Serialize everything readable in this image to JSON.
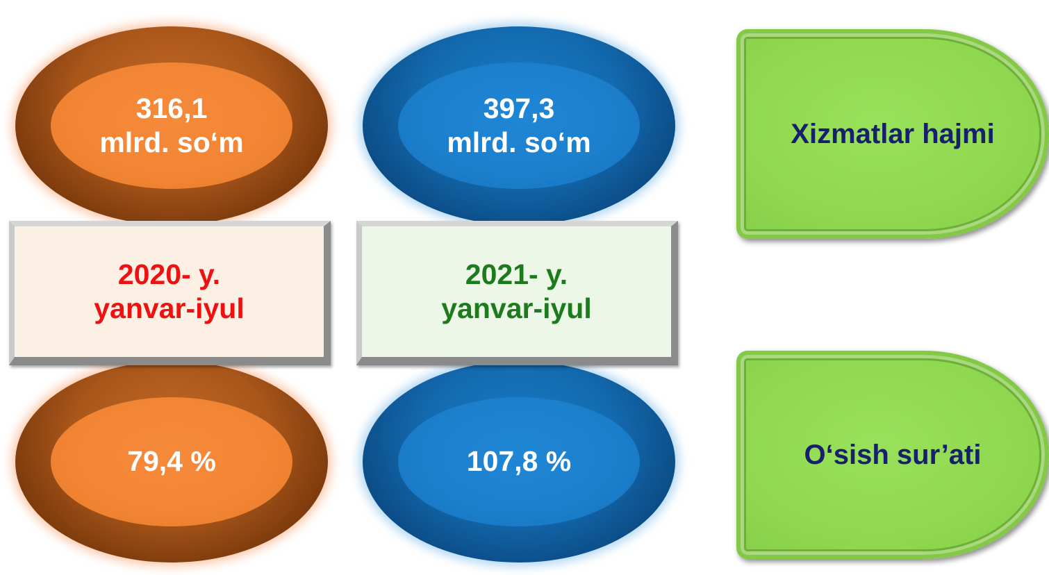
{
  "top_row": {
    "left": {
      "value": "316,1",
      "unit": "mlrd. so‘m"
    },
    "right": {
      "value": "397,3",
      "unit": "mlrd. so‘m"
    }
  },
  "periods": {
    "left": {
      "year": "2020- y.",
      "range": "yanvar-iyul"
    },
    "right": {
      "year": "2021- y.",
      "range": "yanvar-iyul"
    }
  },
  "bottom_row": {
    "left": {
      "value": "79,4 %"
    },
    "right": {
      "value": "107,8 %"
    }
  },
  "labels": {
    "volume": "Xizmatlar hajmi",
    "growth": "O‘sish sur’ati"
  },
  "colors": {
    "orange_accent": "#f28533",
    "blue_accent": "#1b7fcc",
    "period_2020_text": "#ee1111",
    "period_2021_text": "#1d7a1d",
    "label_green": "#8fd84f",
    "label_text": "#17216b"
  }
}
